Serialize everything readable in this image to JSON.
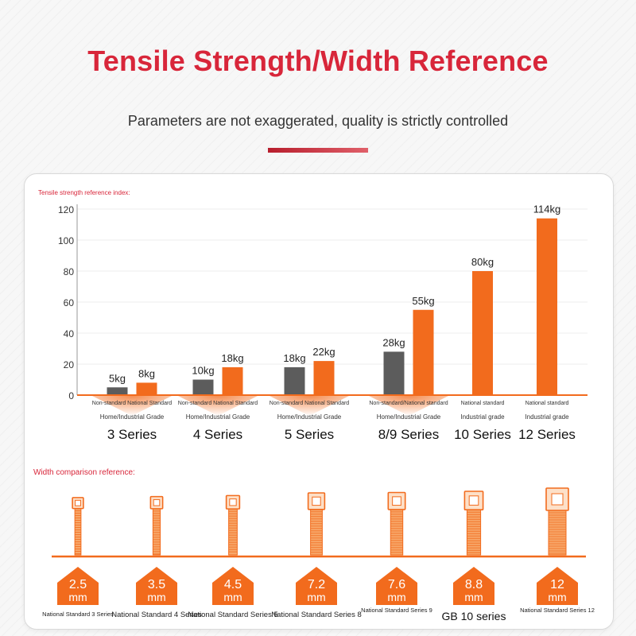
{
  "header": {
    "title": "Tensile Strength/Width Reference",
    "subtitle": "Parameters are not exaggerated, quality is strictly controlled"
  },
  "colors": {
    "accent": "#d8263a",
    "orange": "#f26b1d",
    "gray": "#5c5c5c"
  },
  "chart_data": [
    {
      "type": "bar",
      "title": "Tensile strength reference index:",
      "ylim": [
        0,
        120
      ],
      "yticks": [
        0,
        20,
        40,
        60,
        80,
        100,
        120
      ],
      "grid": true,
      "groups": [
        {
          "name": "3 Series",
          "grade": "Home/Industrial Grade",
          "bars": [
            {
              "kind": "Non-standard",
              "value": 5,
              "label": "5kg"
            },
            {
              "kind": "National Standard",
              "value": 8,
              "label": "8kg"
            }
          ]
        },
        {
          "name": "4 Series",
          "grade": "Home/Industrial Grade",
          "bars": [
            {
              "kind": "Non-standard",
              "value": 10,
              "label": "10kg"
            },
            {
              "kind": "National Standard",
              "value": 18,
              "label": "18kg"
            }
          ]
        },
        {
          "name": "5 Series",
          "grade": "Home/Industrial Grade",
          "bars": [
            {
              "kind": "Non-standard",
              "value": 18,
              "label": "18kg"
            },
            {
              "kind": "National Standard",
              "value": 22,
              "label": "22kg"
            }
          ]
        },
        {
          "name": "8/9 Series",
          "grade": "Home/Industrial Grade",
          "bars": [
            {
              "kind": "Non-standard",
              "value": 28,
              "label": "28kg"
            },
            {
              "kind": "National standard",
              "value": 55,
              "label": "55kg"
            }
          ]
        },
        {
          "name": "10 Series",
          "grade": "Industrial grade",
          "bars": [
            {
              "kind": "National standard",
              "value": 80,
              "label": "80kg"
            }
          ]
        },
        {
          "name": "12 Series",
          "grade": "Industrial grade",
          "bars": [
            {
              "kind": "National standard",
              "value": 114,
              "label": "114kg"
            }
          ]
        }
      ],
      "group_captions": [
        "Non-standard National Standard",
        "Non-standard National Standard",
        "Non-standard National Standard",
        "Non-standard/National standard",
        "National standard",
        "National standard"
      ]
    },
    {
      "type": "table",
      "title": "Width comparison reference:",
      "unit": "mm",
      "items": [
        {
          "width": "2.5",
          "width_value": 2.5,
          "name": "National Standard 3 Series"
        },
        {
          "width": "3.5",
          "width_value": 3.5,
          "name": "National Standard 4 Series"
        },
        {
          "width": "4.5",
          "width_value": 4.5,
          "name": "National Standard Series 5"
        },
        {
          "width": "7.2",
          "width_value": 7.2,
          "name": "National Standard Series 8"
        },
        {
          "width": "7.6",
          "width_value": 7.6,
          "name": "National Standard Series 9"
        },
        {
          "width": "8.8",
          "width_value": 8.8,
          "name": "GB 10 series"
        },
        {
          "width": "12",
          "width_value": 12,
          "name": "National Standard Series 12"
        }
      ]
    }
  ]
}
